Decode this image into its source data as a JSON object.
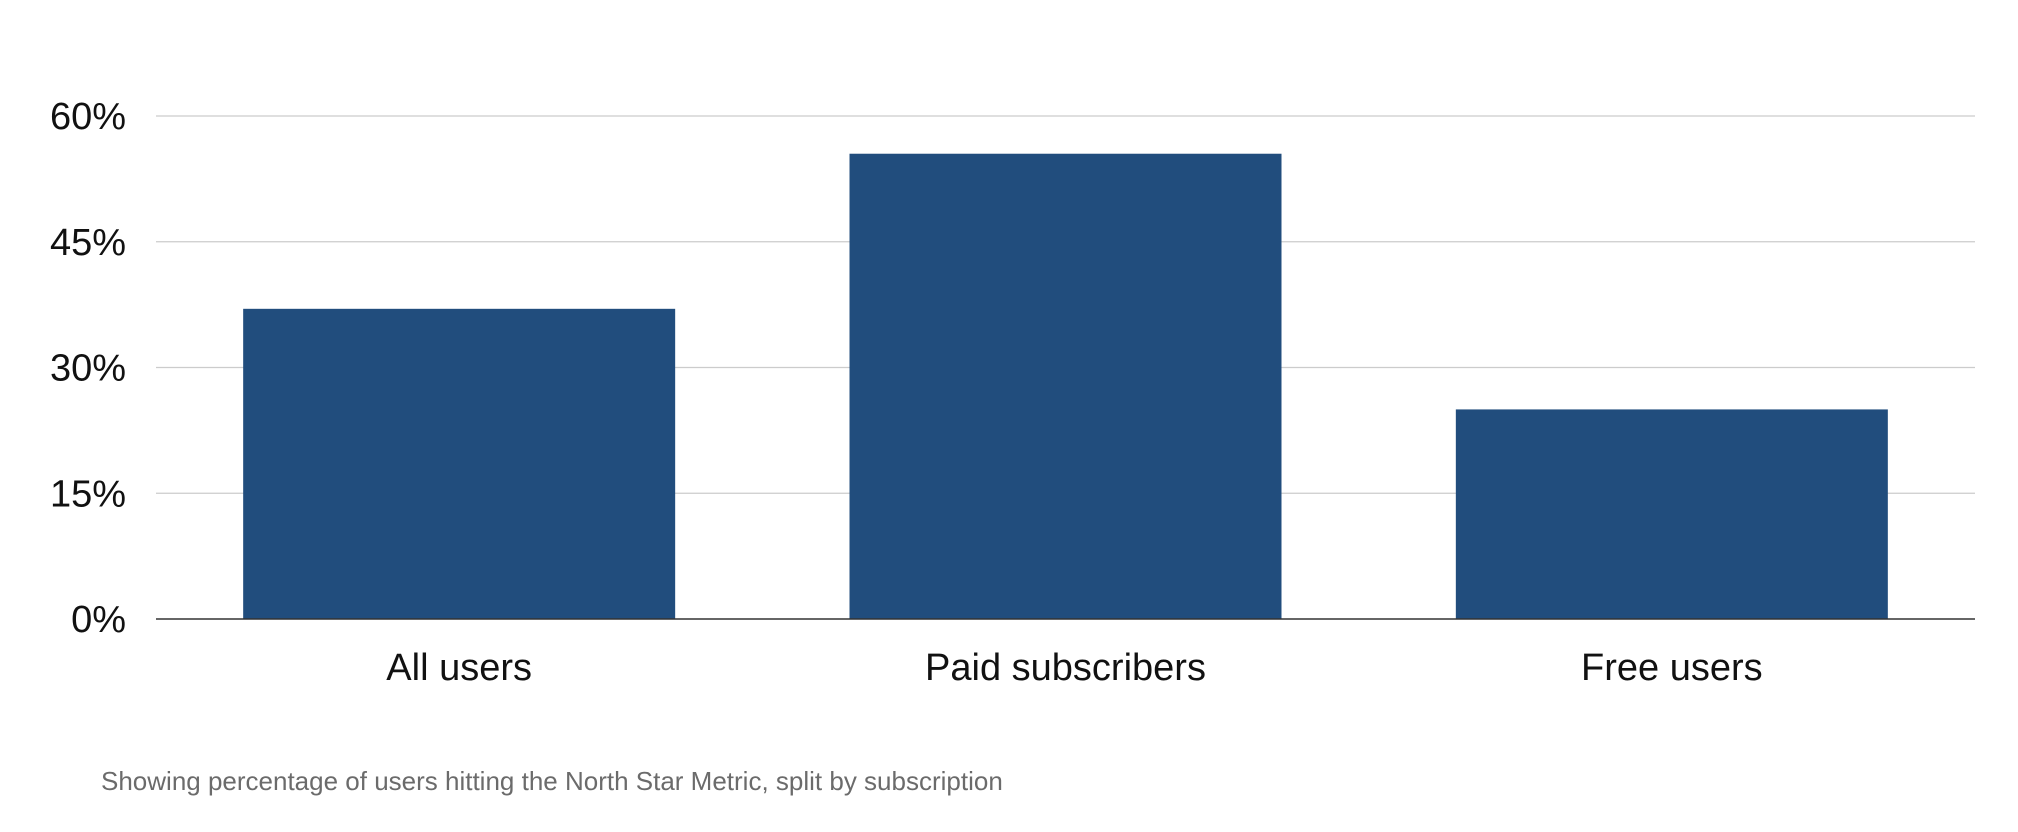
{
  "chart_data": {
    "type": "bar",
    "categories": [
      "All users",
      "Paid subscribers",
      "Free users"
    ],
    "values": [
      37,
      55.5,
      25
    ],
    "ylim": [
      0,
      60
    ],
    "yticks": [
      0,
      15,
      30,
      45,
      60
    ],
    "ytick_labels": [
      "0%",
      "15%",
      "30%",
      "45%",
      "60%"
    ],
    "grid": true,
    "bar_color": "#214d7d",
    "gridline_color": "#cccccc",
    "axis_color": "#333333"
  },
  "caption": "Showing percentage of users hitting the North Star Metric, split by subscription"
}
